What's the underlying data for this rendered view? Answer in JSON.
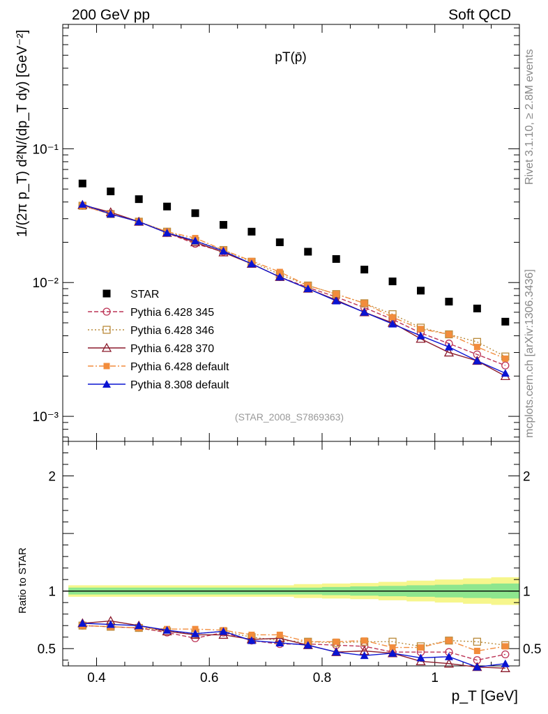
{
  "header": {
    "left": "200 GeV pp",
    "right": "Soft QCD"
  },
  "side_labels": {
    "top": "Rivet 3.1.10, ≥ 2.8M events",
    "bottom": "mcplots.cern.ch [arXiv:1306.3436]"
  },
  "analysis_label": "(STAR_2008_S7869363)",
  "chart_data": {
    "type": "scatter",
    "title": "pT(p̄)",
    "xlabel": "p_T [GeV]",
    "ylabel": "1/(2π p_T) d²N/(dp_T dy) [GeV⁻²]",
    "ratio_ylabel": "Ratio to STAR",
    "yscale": "log",
    "xlim": [
      0.34,
      1.15
    ],
    "ylim": [
      0.00065,
      0.85
    ],
    "ratio_ylim": [
      0.35,
      2.3
    ],
    "x_ticks": [
      "0.4",
      "0.6",
      "0.8",
      "1"
    ],
    "y_ticks": [
      "10⁻³",
      "10⁻²",
      "10⁻¹"
    ],
    "ratio_y_ticks": [
      "0.5",
      "1",
      "2"
    ],
    "legend_position": "lower-left",
    "x": [
      0.375,
      0.425,
      0.475,
      0.525,
      0.575,
      0.625,
      0.675,
      0.725,
      0.775,
      0.825,
      0.875,
      0.925,
      0.975,
      1.025,
      1.075,
      1.125
    ],
    "reference": {
      "name": "STAR",
      "color": "#000000",
      "values": [
        0.055,
        0.048,
        0.042,
        0.037,
        0.033,
        0.027,
        0.024,
        0.02,
        0.017,
        0.015,
        0.0125,
        0.0102,
        0.0087,
        0.0072,
        0.0064,
        0.0051
      ]
    },
    "band": {
      "inner": [
        0.03,
        0.03,
        0.03,
        0.03,
        0.03,
        0.03,
        0.03,
        0.03,
        0.03,
        0.035,
        0.04,
        0.045,
        0.05,
        0.055,
        0.06,
        0.065
      ],
      "outer": [
        0.05,
        0.05,
        0.05,
        0.05,
        0.05,
        0.05,
        0.05,
        0.05,
        0.06,
        0.065,
        0.07,
        0.08,
        0.09,
        0.1,
        0.11,
        0.12
      ],
      "inner_color": "#8ee68e",
      "outer_color": "#f6f68c"
    },
    "series": [
      {
        "name": "Pythia 6.428 345",
        "color": "#bc3355",
        "dash": "6,3",
        "marker": "circle-open",
        "values": [
          0.0375,
          0.0325,
          0.0285,
          0.0235,
          0.0195,
          0.017,
          0.0138,
          0.011,
          0.0092,
          0.0078,
          0.0065,
          0.0053,
          0.0042,
          0.0035,
          0.0029,
          0.0024
        ],
        "ratio": [
          0.7,
          0.69,
          0.68,
          0.64,
          0.59,
          0.64,
          0.57,
          0.54,
          0.54,
          0.53,
          0.52,
          0.47,
          0.47,
          0.47,
          0.4,
          0.45
        ]
      },
      {
        "name": "Pythia 6.428 346",
        "color": "#b98a3a",
        "dash": "2,3",
        "marker": "square-open",
        "values": [
          0.0375,
          0.0325,
          0.0285,
          0.024,
          0.0205,
          0.0175,
          0.0143,
          0.0115,
          0.0095,
          0.0082,
          0.007,
          0.0058,
          0.0046,
          0.0041,
          0.0036,
          0.0028
        ],
        "ratio": [
          0.7,
          0.69,
          0.68,
          0.65,
          0.63,
          0.65,
          0.6,
          0.57,
          0.56,
          0.55,
          0.56,
          0.56,
          0.52,
          0.57,
          0.56,
          0.53
        ]
      },
      {
        "name": "Pythia 6.428 370",
        "color": "#8b1a2b",
        "dash": "",
        "marker": "triangle-open",
        "values": [
          0.038,
          0.0335,
          0.0285,
          0.0235,
          0.02,
          0.0168,
          0.0138,
          0.011,
          0.009,
          0.0074,
          0.006,
          0.005,
          0.0038,
          0.003,
          0.0026,
          0.002
        ],
        "ratio": [
          0.72,
          0.74,
          0.7,
          0.65,
          0.62,
          0.62,
          0.58,
          0.59,
          0.53,
          0.47,
          0.48,
          0.46,
          0.39,
          0.37,
          0.34,
          0.33
        ]
      },
      {
        "name": "Pythia 6.428 default",
        "color": "#f28c3c",
        "dash": "8,3,2,3",
        "marker": "square-filled",
        "values": [
          0.0375,
          0.0325,
          0.0285,
          0.024,
          0.0215,
          0.0175,
          0.0145,
          0.012,
          0.0095,
          0.0082,
          0.007,
          0.0055,
          0.0045,
          0.0041,
          0.0033,
          0.0027
        ],
        "ratio": [
          0.7,
          0.69,
          0.68,
          0.67,
          0.67,
          0.66,
          0.62,
          0.62,
          0.56,
          0.56,
          0.57,
          0.51,
          0.51,
          0.57,
          0.48,
          0.52
        ]
      },
      {
        "name": "Pythia 8.308 default",
        "color": "#0a14d2",
        "dash": "",
        "marker": "triangle-filled",
        "values": [
          0.0385,
          0.0325,
          0.0285,
          0.0235,
          0.0205,
          0.0172,
          0.0138,
          0.011,
          0.009,
          0.0073,
          0.006,
          0.0049,
          0.004,
          0.0033,
          0.0026,
          0.0021
        ],
        "ratio": [
          0.72,
          0.71,
          0.7,
          0.66,
          0.63,
          0.65,
          0.57,
          0.55,
          0.53,
          0.47,
          0.44,
          0.46,
          0.42,
          0.43,
          0.34,
          0.37
        ]
      }
    ]
  }
}
